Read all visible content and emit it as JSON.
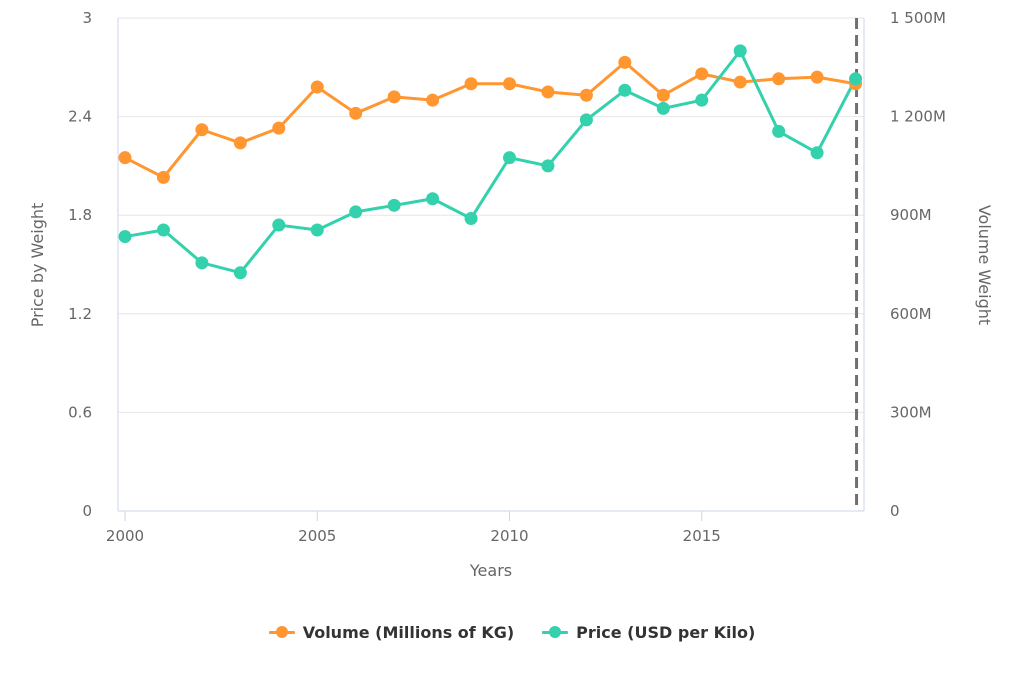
{
  "chart_data": {
    "type": "line",
    "xlabel": "Years",
    "x": [
      2000,
      2001,
      2002,
      2003,
      2004,
      2005,
      2006,
      2007,
      2008,
      2009,
      2010,
      2011,
      2012,
      2013,
      2014,
      2015,
      2016,
      2017,
      2018,
      2019
    ],
    "x_ticks": [
      "2000",
      "2005",
      "2010",
      "2015"
    ],
    "x_tick_values": [
      2000,
      2005,
      2010,
      2015
    ],
    "xlim": [
      2000,
      2019
    ],
    "y_left": {
      "label": "Price by Weight",
      "ylim": [
        0,
        3
      ],
      "ticks": [
        "0",
        "0.6",
        "1.2",
        "1.8",
        "2.4",
        "3"
      ],
      "tick_values": [
        0,
        0.6,
        1.2,
        1.8,
        2.4,
        3
      ]
    },
    "y_right": {
      "label": "Volume Weight",
      "ylim": [
        0,
        1500000000
      ],
      "ticks": [
        "0",
        "300M",
        "600M",
        "900M",
        "1 200M",
        "1 500M"
      ],
      "tick_values": [
        0,
        300000000,
        600000000,
        900000000,
        1200000000,
        1500000000
      ]
    },
    "grid": true,
    "marker_line": {
      "x": 2019,
      "style": "dashed"
    },
    "legend_position": "bottom",
    "series": [
      {
        "name": "Volume (Millions of KG)",
        "axis": "right",
        "color": "#ff9630",
        "values": [
          1075000000,
          1015000000,
          1160000000,
          1120000000,
          1165000000,
          1290000000,
          1210000000,
          1260000000,
          1250000000,
          1300000000,
          1300000000,
          1275000000,
          1265000000,
          1365000000,
          1265000000,
          1330000000,
          1305000000,
          1315000000,
          1320000000,
          1300000000
        ]
      },
      {
        "name": "Price (USD per Kilo)",
        "axis": "left",
        "color": "#33d1ac",
        "values": [
          1.67,
          1.71,
          1.51,
          1.45,
          1.74,
          1.71,
          1.82,
          1.86,
          1.9,
          1.78,
          2.15,
          2.1,
          2.38,
          2.56,
          2.45,
          2.5,
          2.8,
          2.31,
          2.18,
          2.63
        ]
      }
    ]
  },
  "colors": {
    "grid": "#e6e6e6",
    "axis": "#ccd6eb",
    "dashed": "#707070",
    "text": "#666666"
  }
}
